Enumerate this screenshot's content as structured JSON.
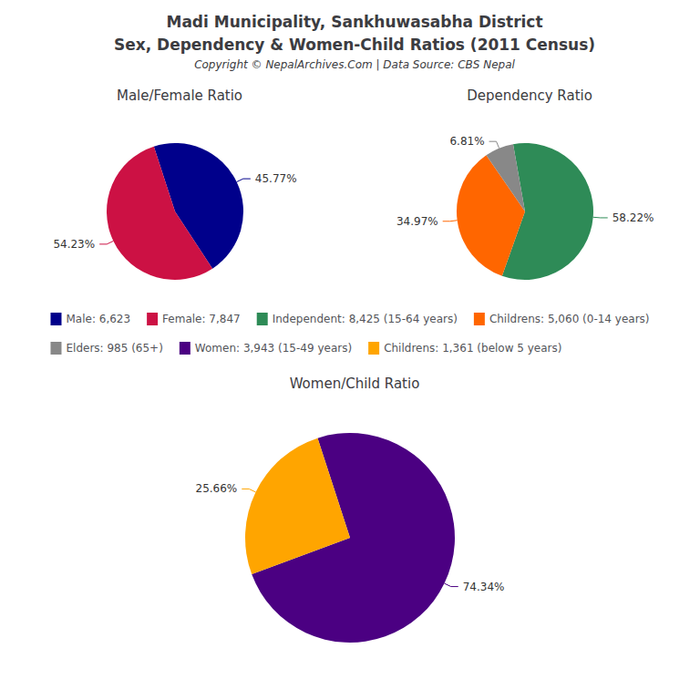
{
  "title": "Madi Municipality, Sankhuwasabha District",
  "subtitle": "Sex, Dependency & Women-Child Ratios (2011 Census)",
  "annotations": [
    "Copyright © NepalArchives.Com | Data Source: CBS Nepal"
  ],
  "chart_data": [
    {
      "type": "pie",
      "title": "Male/Female Ratio",
      "categories": [
        "Male: 6,623",
        "Female: 7,847"
      ],
      "values": [
        45.77,
        54.23
      ],
      "value_labels": [
        "45.77%",
        "54.23%"
      ],
      "colors": [
        "#00008B",
        "#CC1144"
      ],
      "data_labels": true,
      "legend": "center"
    },
    {
      "type": "pie",
      "title": "Dependency Ratio",
      "categories": [
        "Independent: 8,425 (15-64 years)",
        "Childrens: 5,060 (0-14 years)",
        "Elders: 985 (65+)"
      ],
      "values": [
        58.22,
        34.97,
        6.81
      ],
      "value_labels": [
        "58.22%",
        "34.97%",
        "6.81%"
      ],
      "colors": [
        "#2E8B57",
        "#FF6600",
        "#888888"
      ],
      "data_labels": true,
      "legend": "center"
    },
    {
      "type": "pie",
      "title": "Women/Child Ratio",
      "categories": [
        "Women: 3,943 (15-49 years)",
        "Childrens: 1,361 (below 5 years)"
      ],
      "values": [
        74.34,
        25.66
      ],
      "value_labels": [
        "74.34%",
        "25.66%"
      ],
      "colors": [
        "#4B0082",
        "#FFA500"
      ],
      "data_labels": true,
      "legend": "center"
    }
  ]
}
